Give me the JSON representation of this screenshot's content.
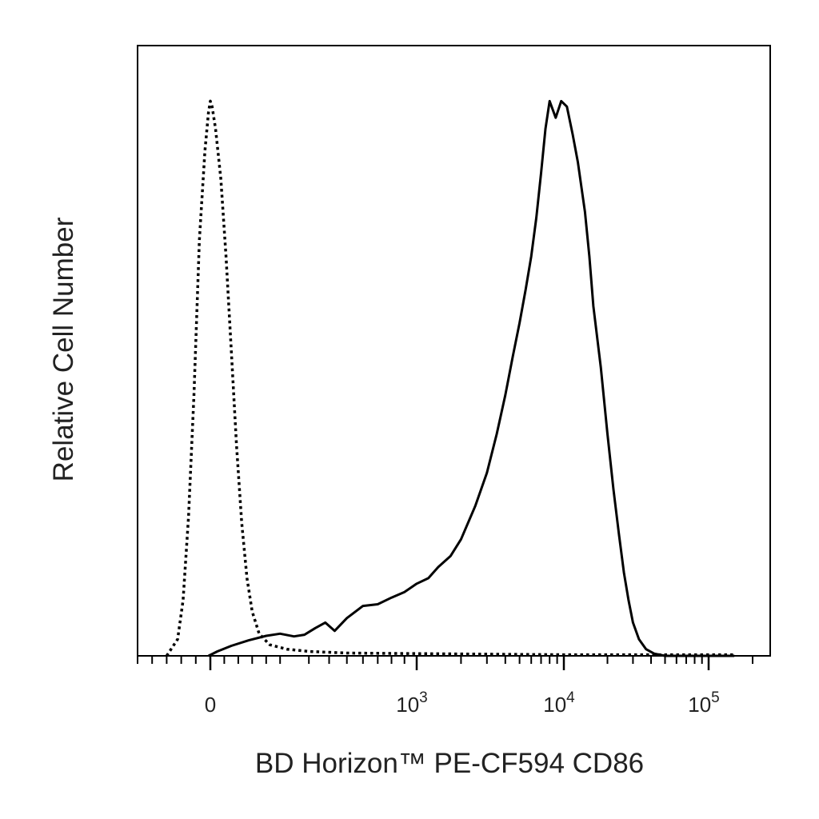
{
  "chart_data": {
    "type": "line",
    "xlabel": "BD Horizon™ PE-CF594 CD86",
    "ylabel": "Relative Cell Number",
    "x_scale": "biexponential",
    "x_ticks": [
      {
        "value": 0,
        "base": "0",
        "exp": ""
      },
      {
        "value": 1000,
        "base": "10",
        "exp": "3"
      },
      {
        "value": 10000,
        "base": "10",
        "exp": "4"
      },
      {
        "value": 100000,
        "base": "10",
        "exp": "5"
      }
    ],
    "xlim": [
      -200,
      200000
    ],
    "ylim": [
      0,
      1.1
    ],
    "grid": false,
    "legend": "none",
    "series": [
      {
        "style": "dotted",
        "color": "#000000",
        "points": [
          [
            -120,
            0.0
          ],
          [
            -90,
            0.03
          ],
          [
            -75,
            0.1
          ],
          [
            -60,
            0.25
          ],
          [
            -45,
            0.47
          ],
          [
            -30,
            0.75
          ],
          [
            -15,
            0.91
          ],
          [
            -5,
            0.98
          ],
          [
            0,
            1.0
          ],
          [
            5,
            0.99
          ],
          [
            15,
            0.95
          ],
          [
            30,
            0.86
          ],
          [
            45,
            0.72
          ],
          [
            60,
            0.55
          ],
          [
            75,
            0.38
          ],
          [
            90,
            0.24
          ],
          [
            105,
            0.14
          ],
          [
            120,
            0.08
          ],
          [
            140,
            0.04
          ],
          [
            170,
            0.02
          ],
          [
            220,
            0.012
          ],
          [
            300,
            0.008
          ],
          [
            500,
            0.005
          ],
          [
            1000,
            0.004
          ],
          [
            3000,
            0.003
          ],
          [
            10000,
            0.002
          ],
          [
            50000,
            0.002
          ],
          [
            150000,
            0.002
          ]
        ]
      },
      {
        "style": "solid",
        "color": "#000000",
        "points": [
          [
            -5,
            0.0
          ],
          [
            20,
            0.008
          ],
          [
            60,
            0.018
          ],
          [
            110,
            0.028
          ],
          [
            160,
            0.036
          ],
          [
            200,
            0.04
          ],
          [
            240,
            0.035
          ],
          [
            280,
            0.038
          ],
          [
            330,
            0.05
          ],
          [
            380,
            0.06
          ],
          [
            430,
            0.045
          ],
          [
            500,
            0.068
          ],
          [
            600,
            0.09
          ],
          [
            700,
            0.093
          ],
          [
            800,
            0.105
          ],
          [
            900,
            0.115
          ],
          [
            1000,
            0.13
          ],
          [
            1200,
            0.14
          ],
          [
            1400,
            0.16
          ],
          [
            1700,
            0.18
          ],
          [
            2000,
            0.21
          ],
          [
            2500,
            0.27
          ],
          [
            3000,
            0.33
          ],
          [
            3500,
            0.4
          ],
          [
            4000,
            0.47
          ],
          [
            4500,
            0.54
          ],
          [
            5000,
            0.6
          ],
          [
            5500,
            0.66
          ],
          [
            6000,
            0.72
          ],
          [
            6500,
            0.79
          ],
          [
            7000,
            0.87
          ],
          [
            7500,
            0.95
          ],
          [
            8000,
            1.0
          ],
          [
            8800,
            0.97
          ],
          [
            9600,
            1.0
          ],
          [
            10500,
            0.99
          ],
          [
            11500,
            0.94
          ],
          [
            12500,
            0.89
          ],
          [
            14000,
            0.8
          ],
          [
            15000,
            0.72
          ],
          [
            16000,
            0.63
          ],
          [
            18000,
            0.52
          ],
          [
            20000,
            0.4
          ],
          [
            22000,
            0.3
          ],
          [
            24000,
            0.22
          ],
          [
            26000,
            0.15
          ],
          [
            28000,
            0.1
          ],
          [
            30000,
            0.06
          ],
          [
            33000,
            0.03
          ],
          [
            37000,
            0.012
          ],
          [
            42000,
            0.004
          ],
          [
            50000,
            0.0
          ],
          [
            150000,
            0.0
          ]
        ]
      }
    ]
  }
}
